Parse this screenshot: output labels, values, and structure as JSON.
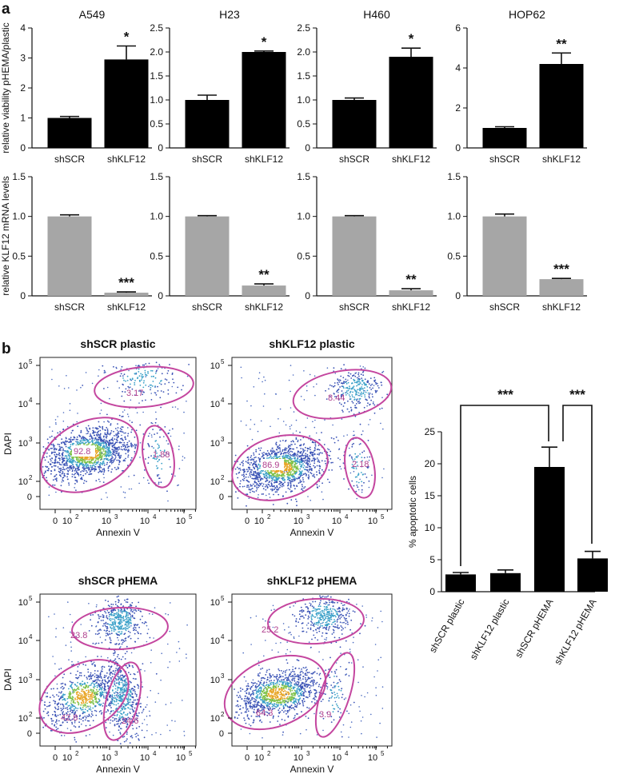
{
  "panel_labels": {
    "a": "a",
    "b": "b"
  },
  "ylabels": {
    "viability": "relative viability pHEMA/plastic",
    "mrna": "relative KLF12 mRNA levels",
    "dapi": "DAPI",
    "apoptotic": "% apoptotic cells"
  },
  "annexin_label": "Annexin V",
  "flow_ticks": {
    "x": [
      "0",
      "10",
      "10",
      "10",
      "10"
    ],
    "x_exp": [
      "",
      "2",
      "3",
      "4",
      "5"
    ],
    "y": [
      "0",
      "10",
      "10",
      "10",
      "10"
    ],
    "y_exp": [
      "",
      "2",
      "3",
      "4",
      "5"
    ]
  },
  "brackets": [
    "***",
    "***"
  ],
  "flow_panels": [
    {
      "title": "shSCR plastic",
      "gates": [
        "3.17",
        "92.8",
        "1.88"
      ]
    },
    {
      "title": "shKLF12 plastic",
      "gates": [
        "8.44",
        "86.9",
        "2.18"
      ]
    },
    {
      "title": "shSCR pHEMA",
      "gates": [
        "23.8",
        "42.8",
        "24.6"
      ]
    },
    {
      "title": "shKLF12 pHEMA",
      "gates": [
        "25.2",
        "64.3",
        "3.9"
      ]
    }
  ],
  "chart_data": [
    {
      "type": "bar",
      "title": "A549",
      "categories": [
        "shSCR",
        "shKLF12"
      ],
      "values": [
        1.0,
        2.95
      ],
      "errors": [
        0.05,
        0.45
      ],
      "sig": [
        "",
        "*"
      ],
      "ylim": [
        0,
        4
      ],
      "yticks": [
        "0",
        "1",
        "2",
        "3",
        "4"
      ],
      "color": "#000000"
    },
    {
      "type": "bar",
      "title": "H23",
      "categories": [
        "shSCR",
        "shKLF12"
      ],
      "values": [
        1.0,
        2.0
      ],
      "errors": [
        0.1,
        0.02
      ],
      "sig": [
        "",
        "*"
      ],
      "ylim": [
        0,
        2.5
      ],
      "yticks": [
        "0",
        "0.5",
        "1.0",
        "1.5",
        "2.0",
        "2.5"
      ],
      "color": "#000000"
    },
    {
      "type": "bar",
      "title": "H460",
      "categories": [
        "shSCR",
        "shKLF12"
      ],
      "values": [
        1.0,
        1.9
      ],
      "errors": [
        0.04,
        0.18
      ],
      "sig": [
        "",
        "*"
      ],
      "ylim": [
        0,
        2.5
      ],
      "yticks": [
        "0",
        "0.5",
        "1.0",
        "1.5",
        "2.0",
        "2.5"
      ],
      "color": "#000000"
    },
    {
      "type": "bar",
      "title": "HOP62",
      "categories": [
        "shSCR",
        "shKLF12"
      ],
      "values": [
        1.0,
        4.2
      ],
      "errors": [
        0.06,
        0.55
      ],
      "sig": [
        "",
        "**"
      ],
      "ylim": [
        0,
        6
      ],
      "yticks": [
        "0",
        "2",
        "4",
        "6"
      ],
      "color": "#000000"
    },
    {
      "type": "bar",
      "title": "",
      "categories": [
        "shSCR",
        "shKLF12"
      ],
      "values": [
        1.0,
        0.04
      ],
      "errors": [
        0.02,
        0.01
      ],
      "sig": [
        "",
        "***"
      ],
      "ylim": [
        0,
        1.5
      ],
      "yticks": [
        "0",
        "0.5",
        "1.0",
        "1.5"
      ],
      "color": "#a6a6a6"
    },
    {
      "type": "bar",
      "title": "",
      "categories": [
        "shSCR",
        "shKLF12"
      ],
      "values": [
        1.0,
        0.13
      ],
      "errors": [
        0.01,
        0.02
      ],
      "sig": [
        "",
        "**"
      ],
      "ylim": [
        0,
        1.5
      ],
      "yticks": [
        "0",
        "0.5",
        "1.0",
        "1.5"
      ],
      "color": "#a6a6a6"
    },
    {
      "type": "bar",
      "title": "",
      "categories": [
        "shSCR",
        "shKLF12"
      ],
      "values": [
        1.0,
        0.07
      ],
      "errors": [
        0.01,
        0.02
      ],
      "sig": [
        "",
        "**"
      ],
      "ylim": [
        0,
        1.5
      ],
      "yticks": [
        "0",
        "0.5",
        "1.0",
        "1.5"
      ],
      "color": "#a6a6a6"
    },
    {
      "type": "bar",
      "title": "",
      "categories": [
        "shSCR",
        "shKLF12"
      ],
      "values": [
        1.0,
        0.21
      ],
      "errors": [
        0.03,
        0.01
      ],
      "sig": [
        "",
        "***"
      ],
      "ylim": [
        0,
        1.5
      ],
      "yticks": [
        "0",
        "0.5",
        "1.0",
        "1.5"
      ],
      "color": "#a6a6a6"
    },
    {
      "type": "bar",
      "title": "",
      "categories": [
        "shSCR plastic",
        "shKLF12 plastic",
        "shSCR pHEMA",
        "shKLF12 pHEMA"
      ],
      "values": [
        2.7,
        2.9,
        19.5,
        5.2
      ],
      "errors": [
        0.3,
        0.5,
        3.1,
        1.1
      ],
      "ylim": [
        0,
        25
      ],
      "yticks": [
        "0",
        "5",
        "10",
        "15",
        "20",
        "25"
      ],
      "ylabel": "% apoptotic cells",
      "color": "#000000"
    }
  ]
}
